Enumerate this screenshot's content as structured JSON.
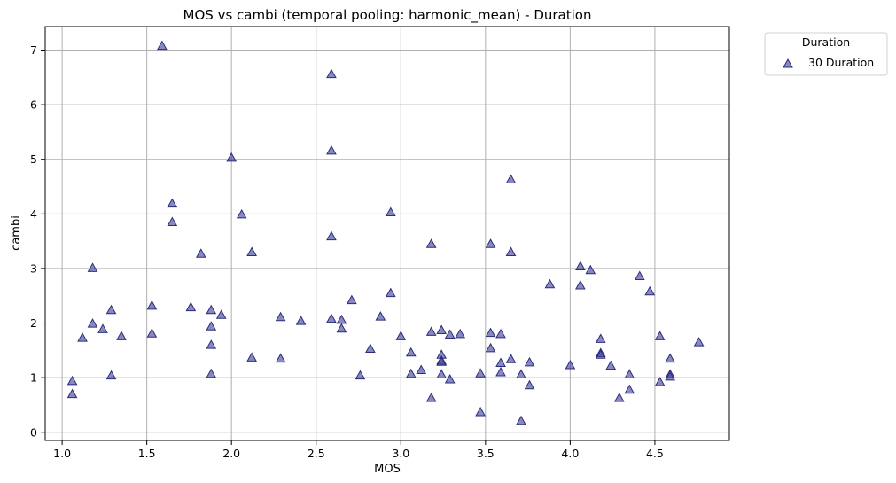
{
  "chart_data": {
    "type": "scatter",
    "title": "MOS vs cambi (temporal pooling: harmonic_mean) - Duration",
    "xlabel": "MOS",
    "ylabel": "cambi",
    "xlim": [
      0.9,
      4.94
    ],
    "ylim": [
      -0.15,
      7.43
    ],
    "xticks": [
      "1.0",
      "1.5",
      "2.0",
      "2.5",
      "3.0",
      "3.5",
      "4.0",
      "4.5"
    ],
    "yticks": [
      "0",
      "1",
      "2",
      "3",
      "4",
      "5",
      "6",
      "7"
    ],
    "grid": true,
    "legend": {
      "title": "Duration",
      "placement": "outside-top-right"
    },
    "series": [
      {
        "name": "30 Duration",
        "marker": "triangle",
        "color": "#3b3b9a",
        "points": [
          [
            1.59,
            7.08
          ],
          [
            2.59,
            6.56
          ],
          [
            2.59,
            5.16
          ],
          [
            2.0,
            5.03
          ],
          [
            3.65,
            4.63
          ],
          [
            1.65,
            4.19
          ],
          [
            2.06,
            3.99
          ],
          [
            2.94,
            4.03
          ],
          [
            1.65,
            3.85
          ],
          [
            2.59,
            3.59
          ],
          [
            3.18,
            3.45
          ],
          [
            3.53,
            3.45
          ],
          [
            1.82,
            3.27
          ],
          [
            2.12,
            3.3
          ],
          [
            3.65,
            3.3
          ],
          [
            1.18,
            3.01
          ],
          [
            4.06,
            3.04
          ],
          [
            4.12,
            2.97
          ],
          [
            4.41,
            2.86
          ],
          [
            3.88,
            2.71
          ],
          [
            4.06,
            2.69
          ],
          [
            4.47,
            2.58
          ],
          [
            2.94,
            2.55
          ],
          [
            2.71,
            2.42
          ],
          [
            1.53,
            2.32
          ],
          [
            1.29,
            2.24
          ],
          [
            1.76,
            2.29
          ],
          [
            1.88,
            2.24
          ],
          [
            1.94,
            2.15
          ],
          [
            2.29,
            2.11
          ],
          [
            2.41,
            2.04
          ],
          [
            2.59,
            2.08
          ],
          [
            2.65,
            2.06
          ],
          [
            2.88,
            2.12
          ],
          [
            1.18,
            1.99
          ],
          [
            1.24,
            1.89
          ],
          [
            1.88,
            1.94
          ],
          [
            2.65,
            1.9
          ],
          [
            3.18,
            1.84
          ],
          [
            3.24,
            1.87
          ],
          [
            3.29,
            1.79
          ],
          [
            3.35,
            1.8
          ],
          [
            3.53,
            1.82
          ],
          [
            3.59,
            1.8
          ],
          [
            1.12,
            1.73
          ],
          [
            1.35,
            1.76
          ],
          [
            1.53,
            1.81
          ],
          [
            3.0,
            1.76
          ],
          [
            4.18,
            1.71
          ],
          [
            4.53,
            1.76
          ],
          [
            4.76,
            1.65
          ],
          [
            1.88,
            1.6
          ],
          [
            2.82,
            1.53
          ],
          [
            3.06,
            1.46
          ],
          [
            3.53,
            1.54
          ],
          [
            4.18,
            1.45
          ],
          [
            4.18,
            1.42
          ],
          [
            3.24,
            1.42
          ],
          [
            2.12,
            1.37
          ],
          [
            2.29,
            1.35
          ],
          [
            3.65,
            1.34
          ],
          [
            4.59,
            1.35
          ],
          [
            3.24,
            1.31
          ],
          [
            3.24,
            1.29
          ],
          [
            3.59,
            1.27
          ],
          [
            3.76,
            1.28
          ],
          [
            4.0,
            1.23
          ],
          [
            4.24,
            1.22
          ],
          [
            3.12,
            1.14
          ],
          [
            3.59,
            1.1
          ],
          [
            3.47,
            1.08
          ],
          [
            3.71,
            1.06
          ],
          [
            4.35,
            1.06
          ],
          [
            4.59,
            1.06
          ],
          [
            4.59,
            1.02
          ],
          [
            1.88,
            1.07
          ],
          [
            1.29,
            1.04
          ],
          [
            2.76,
            1.04
          ],
          [
            3.06,
            1.07
          ],
          [
            3.24,
            1.06
          ],
          [
            3.29,
            0.97
          ],
          [
            1.06,
            0.94
          ],
          [
            4.53,
            0.92
          ],
          [
            3.76,
            0.86
          ],
          [
            4.35,
            0.78
          ],
          [
            1.06,
            0.7
          ],
          [
            3.18,
            0.63
          ],
          [
            4.29,
            0.63
          ],
          [
            3.47,
            0.37
          ],
          [
            3.71,
            0.21
          ]
        ]
      }
    ]
  }
}
